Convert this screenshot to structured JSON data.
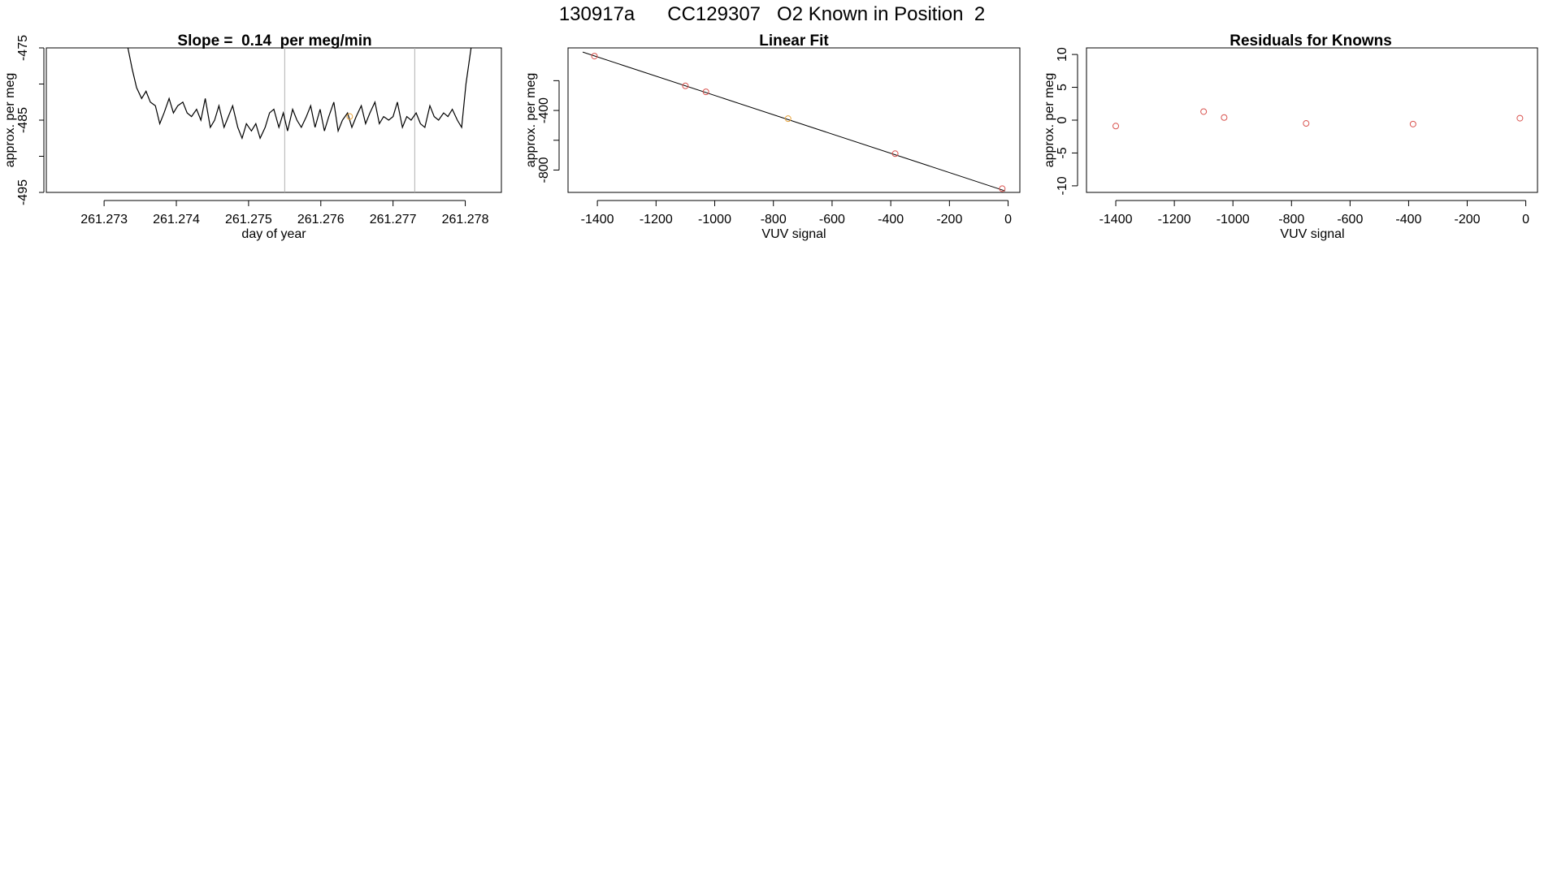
{
  "figure_title": "130917a      CC129307   O2 Known in Position  2",
  "colors": {
    "line": "#000000",
    "point_known": "#d9534f",
    "point_highlight": "#e8a33a",
    "vline": "#b0b0b0"
  },
  "chart_data": [
    {
      "type": "line",
      "title": "Slope =  0.14  per meg/min",
      "xlabel": "day of year",
      "ylabel": "approx. per meg",
      "xlim": [
        261.2722,
        261.2785
      ],
      "ylim": [
        -495,
        -475
      ],
      "xticks": [
        261.273,
        261.274,
        261.275,
        261.276,
        261.277,
        261.278
      ],
      "xtick_labels": [
        "261.273",
        "261.274",
        "261.275",
        "261.276",
        "261.277",
        "261.278"
      ],
      "yticks": [
        -475,
        -480,
        -485,
        -490,
        -495
      ],
      "ytick_labels": [
        "-475",
        "",
        "-485",
        "",
        "-495"
      ],
      "vlines": [
        261.2755,
        261.2773
      ],
      "series": [
        {
          "x": [
            261.27333,
            261.27339,
            261.27345,
            261.27352,
            261.27358,
            261.27364,
            261.27371,
            261.27377,
            261.27383,
            261.2739,
            261.27396,
            261.27402,
            261.27409,
            261.27415,
            261.27421,
            261.27428,
            261.27434,
            261.2744,
            261.27447,
            261.27453,
            261.27459,
            261.27466,
            261.27472,
            261.27478,
            261.27485,
            261.27491,
            261.27497,
            261.27504,
            261.2751,
            261.27516,
            261.27523,
            261.27529,
            261.27535,
            261.27542,
            261.27548,
            261.27554,
            261.27561,
            261.27567,
            261.27573,
            261.2758,
            261.27586,
            261.27592,
            261.27599,
            261.27605,
            261.27611,
            261.27618,
            261.27624,
            261.2763,
            261.27637,
            261.27643,
            261.27649,
            261.27656,
            261.27662,
            261.27668,
            261.27675,
            261.27681,
            261.27687,
            261.27694,
            261.277,
            261.27706,
            261.27713,
            261.27719,
            261.27725,
            261.27732,
            261.27738,
            261.27744,
            261.27751,
            261.27757,
            261.27763,
            261.2777,
            261.27776,
            261.27782,
            261.27789,
            261.27795,
            261.27801,
            261.27808
          ],
          "y": [
            -475.0,
            -478.0,
            -480.5,
            -482.0,
            -481.0,
            -482.5,
            -483.0,
            -485.5,
            -484.0,
            -482.0,
            -484.0,
            -483.0,
            -482.5,
            -484.0,
            -484.5,
            -483.5,
            -485.0,
            -482.0,
            -486.0,
            -485.0,
            -483.0,
            -486.0,
            -484.5,
            -483.0,
            -486.0,
            -487.5,
            -485.5,
            -486.5,
            -485.5,
            -487.5,
            -486.0,
            -484.0,
            -483.5,
            -486.0,
            -484.0,
            -486.5,
            -483.5,
            -485.0,
            -486.0,
            -484.5,
            -483.0,
            -486.0,
            -483.5,
            -486.5,
            -484.5,
            -482.5,
            -486.5,
            -485.0,
            -484.0,
            -486.0,
            -484.5,
            -483.0,
            -485.5,
            -484.0,
            -482.5,
            -485.5,
            -484.5,
            -485.0,
            -484.5,
            -482.5,
            -486.0,
            -484.5,
            -485.0,
            -484.0,
            -485.5,
            -486.0,
            -483.0,
            -484.5,
            -485.0,
            -484.0,
            -484.5,
            -483.5,
            -485.0,
            -486.0,
            -480.0,
            -475.0
          ]
        }
      ],
      "highlight_points": [
        {
          "x": 261.2764,
          "y": -484.5
        }
      ]
    },
    {
      "type": "scatter",
      "title": "Linear Fit",
      "xlabel": "VUV signal",
      "ylabel": "approx. per meg",
      "xlim": [
        -1500,
        40
      ],
      "ylim": [
        -950,
        20
      ],
      "xticks": [
        -1400,
        -1200,
        -1000,
        -800,
        -600,
        -400,
        -200,
        0
      ],
      "xtick_labels": [
        "-1400",
        "-1200",
        "-1000",
        "-800",
        "-600",
        "-400",
        "-200",
        "0"
      ],
      "yticks": [
        -200,
        -400,
        -600,
        -800
      ],
      "ytick_labels": [
        "",
        "-400",
        "",
        "-800"
      ],
      "points": [
        {
          "x": -1410,
          "y": -35,
          "kind": "known"
        },
        {
          "x": -1100,
          "y": -235,
          "kind": "known"
        },
        {
          "x": -1030,
          "y": -275,
          "kind": "known"
        },
        {
          "x": -750,
          "y": -455,
          "kind": "highlight"
        },
        {
          "x": -385,
          "y": -690,
          "kind": "known"
        },
        {
          "x": -20,
          "y": -925,
          "kind": "known"
        }
      ],
      "fit_line": {
        "x": [
          -1450,
          -10
        ],
        "y": [
          -8,
          -940
        ]
      }
    },
    {
      "type": "scatter",
      "title": "Residuals for Knowns",
      "xlabel": "VUV signal",
      "ylabel": "approx. per meg",
      "xlim": [
        -1500,
        40
      ],
      "ylim": [
        -11,
        11
      ],
      "xticks": [
        -1400,
        -1200,
        -1000,
        -800,
        -600,
        -400,
        -200,
        0
      ],
      "xtick_labels": [
        "-1400",
        "-1200",
        "-1000",
        "-800",
        "-600",
        "-400",
        "-200",
        "0"
      ],
      "yticks": [
        10,
        5,
        0,
        -5,
        -10
      ],
      "ytick_labels": [
        "10",
        "5",
        "0",
        "-5",
        "-10"
      ],
      "points": [
        {
          "x": -1400,
          "y": -0.9,
          "kind": "known"
        },
        {
          "x": -1100,
          "y": 1.3,
          "kind": "known"
        },
        {
          "x": -1030,
          "y": 0.4,
          "kind": "known"
        },
        {
          "x": -750,
          "y": -0.5,
          "kind": "known"
        },
        {
          "x": -385,
          "y": -0.6,
          "kind": "known"
        },
        {
          "x": -20,
          "y": 0.3,
          "kind": "known"
        }
      ]
    }
  ]
}
